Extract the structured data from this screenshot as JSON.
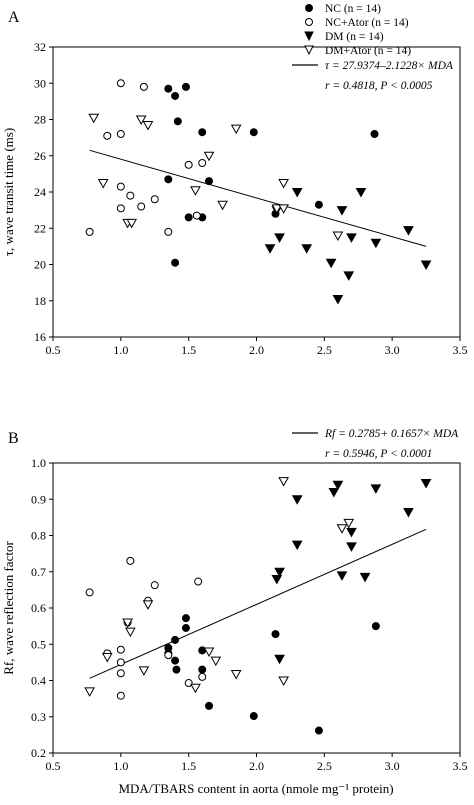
{
  "chart_data": [
    {
      "type": "scatter",
      "panel_label": "A",
      "xlabel": "",
      "ylabel": "τ, wave transit time (ms)",
      "xlim": [
        0.5,
        3.5
      ],
      "ylim": [
        16,
        32
      ],
      "xticks": [
        "0.5",
        "1.0",
        "1.5",
        "2.0",
        "2.5",
        "3.0",
        "3.5"
      ],
      "yticks": [
        "16",
        "18",
        "20",
        "22",
        "24",
        "26",
        "28",
        "30",
        "32"
      ],
      "legend": [
        {
          "marker": "filled-circle",
          "label": "NC (n = 14)"
        },
        {
          "marker": "open-circle",
          "label": "NC+Ator (n = 14)"
        },
        {
          "marker": "filled-triangle-down",
          "label": "DM (n = 14)"
        },
        {
          "marker": "open-triangle-down",
          "label": "DM+Ator (n = 14)"
        }
      ],
      "fit_legend": "τ = 27.9374–2.1228× MDA",
      "stats": "r = 0.4818, P < 0.0005",
      "fit_line": {
        "x": [
          0.77,
          3.25
        ],
        "y": [
          26.3,
          21.0
        ]
      },
      "series": [
        {
          "name": "NC (n = 14)",
          "marker": "filled-circle",
          "points": [
            [
              1.35,
              29.7
            ],
            [
              1.48,
              29.8
            ],
            [
              1.4,
              29.3
            ],
            [
              1.42,
              27.9
            ],
            [
              1.6,
              27.3
            ],
            [
              1.98,
              27.3
            ],
            [
              2.87,
              27.2
            ],
            [
              1.35,
              24.7
            ],
            [
              1.65,
              24.6
            ],
            [
              1.5,
              22.6
            ],
            [
              1.6,
              22.6
            ],
            [
              2.14,
              22.8
            ],
            [
              2.46,
              23.3
            ],
            [
              1.4,
              20.1
            ]
          ]
        },
        {
          "name": "NC+Ator (n = 14)",
          "marker": "open-circle",
          "points": [
            [
              1.0,
              30.0
            ],
            [
              1.17,
              29.8
            ],
            [
              0.9,
              27.1
            ],
            [
              1.0,
              27.2
            ],
            [
              1.5,
              25.5
            ],
            [
              1.6,
              25.6
            ],
            [
              1.0,
              24.3
            ],
            [
              1.07,
              23.8
            ],
            [
              1.15,
              23.2
            ],
            [
              1.25,
              23.6
            ],
            [
              1.0,
              23.1
            ],
            [
              0.77,
              21.8
            ],
            [
              1.35,
              21.8
            ],
            [
              1.56,
              22.7
            ]
          ]
        },
        {
          "name": "DM (n = 14)",
          "marker": "filled-triangle-down",
          "points": [
            [
              2.3,
              24.0
            ],
            [
              2.77,
              24.0
            ],
            [
              2.15,
              23.0
            ],
            [
              2.63,
              23.0
            ],
            [
              3.12,
              21.9
            ],
            [
              2.17,
              21.5
            ],
            [
              2.7,
              21.5
            ],
            [
              2.88,
              21.2
            ],
            [
              2.1,
              20.9
            ],
            [
              2.37,
              20.9
            ],
            [
              2.55,
              20.1
            ],
            [
              2.68,
              19.4
            ],
            [
              3.25,
              20.0
            ],
            [
              2.6,
              18.1
            ]
          ]
        },
        {
          "name": "DM+Ator (n = 14)",
          "marker": "open-triangle-down",
          "points": [
            [
              0.8,
              28.1
            ],
            [
              1.15,
              28.0
            ],
            [
              1.2,
              27.7
            ],
            [
              1.85,
              27.5
            ],
            [
              0.87,
              24.5
            ],
            [
              1.05,
              22.3
            ],
            [
              1.08,
              22.3
            ],
            [
              1.55,
              24.1
            ],
            [
              1.65,
              26.0
            ],
            [
              1.75,
              23.3
            ],
            [
              2.2,
              24.5
            ],
            [
              2.15,
              23.1
            ],
            [
              2.6,
              21.6
            ],
            [
              2.2,
              23.1
            ]
          ]
        }
      ]
    },
    {
      "type": "scatter",
      "panel_label": "B",
      "xlabel": "MDA/TBARS content in aorta (nmole mg⁻¹ protein)",
      "ylabel": "Rf, wave reflection factor",
      "xlim": [
        0.5,
        3.5
      ],
      "ylim": [
        0.2,
        1.0
      ],
      "xticks": [
        "0.5",
        "1.0",
        "1.5",
        "2.0",
        "2.5",
        "3.0",
        "3.5"
      ],
      "yticks": [
        "0.2",
        "0.3",
        "0.4",
        "0.5",
        "0.6",
        "0.7",
        "0.8",
        "0.9",
        "1.0"
      ],
      "fit_legend": "Rf = 0.2785+ 0.1657× MDA",
      "stats": "r = 0.5946, P < 0.0001",
      "fit_line": {
        "x": [
          0.77,
          3.25
        ],
        "y": [
          0.406,
          0.817
        ]
      },
      "series": [
        {
          "name": "NC",
          "marker": "filled-circle",
          "points": [
            [
              1.48,
              0.572
            ],
            [
              1.48,
              0.545
            ],
            [
              1.4,
              0.512
            ],
            [
              1.35,
              0.49
            ],
            [
              1.4,
              0.455
            ],
            [
              1.41,
              0.43
            ],
            [
              1.6,
              0.483
            ],
            [
              1.6,
              0.43
            ],
            [
              1.65,
              0.33
            ],
            [
              1.98,
              0.302
            ],
            [
              2.14,
              0.528
            ],
            [
              2.88,
              0.55
            ],
            [
              2.46,
              0.262
            ],
            [
              1.35,
              0.475
            ]
          ]
        },
        {
          "name": "NC+Ator",
          "marker": "open-circle",
          "points": [
            [
              0.77,
              0.643
            ],
            [
              1.07,
              0.73
            ],
            [
              1.25,
              0.663
            ],
            [
              1.2,
              0.62
            ],
            [
              1.57,
              0.673
            ],
            [
              1.0,
              0.485
            ],
            [
              0.9,
              0.475
            ],
            [
              1.0,
              0.45
            ],
            [
              1.0,
              0.42
            ],
            [
              1.0,
              0.358
            ],
            [
              1.35,
              0.47
            ],
            [
              1.5,
              0.393
            ],
            [
              1.6,
              0.41
            ],
            [
              1.05,
              0.56
            ]
          ]
        },
        {
          "name": "DM",
          "marker": "filled-triangle-down",
          "points": [
            [
              2.3,
              0.9
            ],
            [
              2.57,
              0.92
            ],
            [
              2.6,
              0.94
            ],
            [
              2.88,
              0.93
            ],
            [
              3.25,
              0.945
            ],
            [
              3.12,
              0.865
            ],
            [
              2.7,
              0.81
            ],
            [
              2.3,
              0.775
            ],
            [
              2.7,
              0.77
            ],
            [
              2.63,
              0.69
            ],
            [
              2.8,
              0.686
            ],
            [
              2.15,
              0.68
            ],
            [
              2.17,
              0.7
            ],
            [
              2.17,
              0.46
            ]
          ]
        },
        {
          "name": "DM+Ator",
          "marker": "open-triangle-down",
          "points": [
            [
              2.2,
              0.95
            ],
            [
              2.63,
              0.82
            ],
            [
              2.68,
              0.835
            ],
            [
              1.2,
              0.61
            ],
            [
              1.05,
              0.56
            ],
            [
              1.07,
              0.535
            ],
            [
              1.65,
              0.48
            ],
            [
              1.7,
              0.455
            ],
            [
              1.85,
              0.418
            ],
            [
              0.9,
              0.465
            ],
            [
              1.17,
              0.428
            ],
            [
              1.55,
              0.38
            ],
            [
              0.77,
              0.37
            ],
            [
              2.2,
              0.4
            ]
          ]
        }
      ]
    }
  ]
}
